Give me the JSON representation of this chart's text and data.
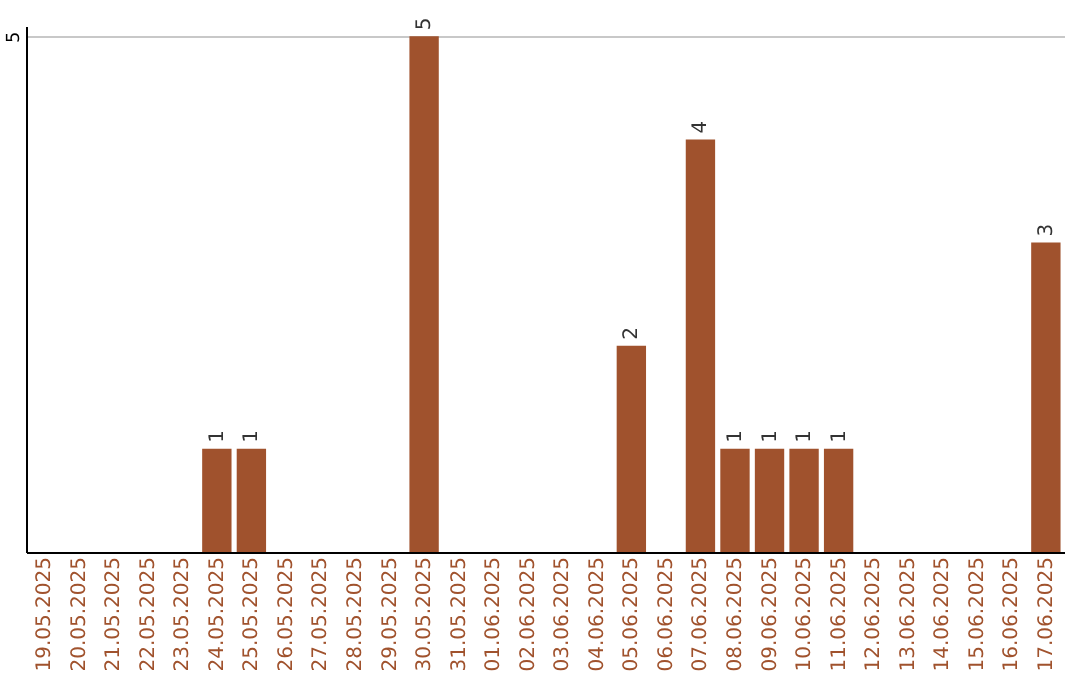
{
  "chart_data": {
    "type": "bar",
    "categories": [
      "19.05.2025",
      "20.05.2025",
      "21.05.2025",
      "22.05.2025",
      "23.05.2025",
      "24.05.2025",
      "25.05.2025",
      "26.05.2025",
      "27.05.2025",
      "28.05.2025",
      "29.05.2025",
      "30.05.2025",
      "31.05.2025",
      "01.06.2025",
      "02.06.2025",
      "03.06.2025",
      "04.06.2025",
      "05.06.2025",
      "06.06.2025",
      "07.06.2025",
      "08.06.2025",
      "09.06.2025",
      "10.06.2025",
      "11.06.2025",
      "12.06.2025",
      "13.06.2025",
      "14.06.2025",
      "15.06.2025",
      "16.06.2025",
      "17.06.2025"
    ],
    "values": [
      0,
      0,
      0,
      0,
      0,
      1,
      1,
      0,
      0,
      0,
      0,
      5,
      0,
      0,
      0,
      0,
      0,
      2,
      0,
      4,
      1,
      1,
      1,
      1,
      0,
      0,
      0,
      0,
      0,
      3
    ],
    "value_labels": [
      null,
      null,
      null,
      null,
      null,
      "1",
      "1",
      null,
      null,
      null,
      null,
      "5",
      null,
      null,
      null,
      null,
      null,
      "2",
      null,
      "4",
      "1",
      "1",
      "1",
      "1",
      null,
      null,
      null,
      null,
      null,
      "3"
    ],
    "color": "#a0522d",
    "ylim": [
      0,
      5.1
    ],
    "yticks": [
      5
    ],
    "grid": "y"
  }
}
